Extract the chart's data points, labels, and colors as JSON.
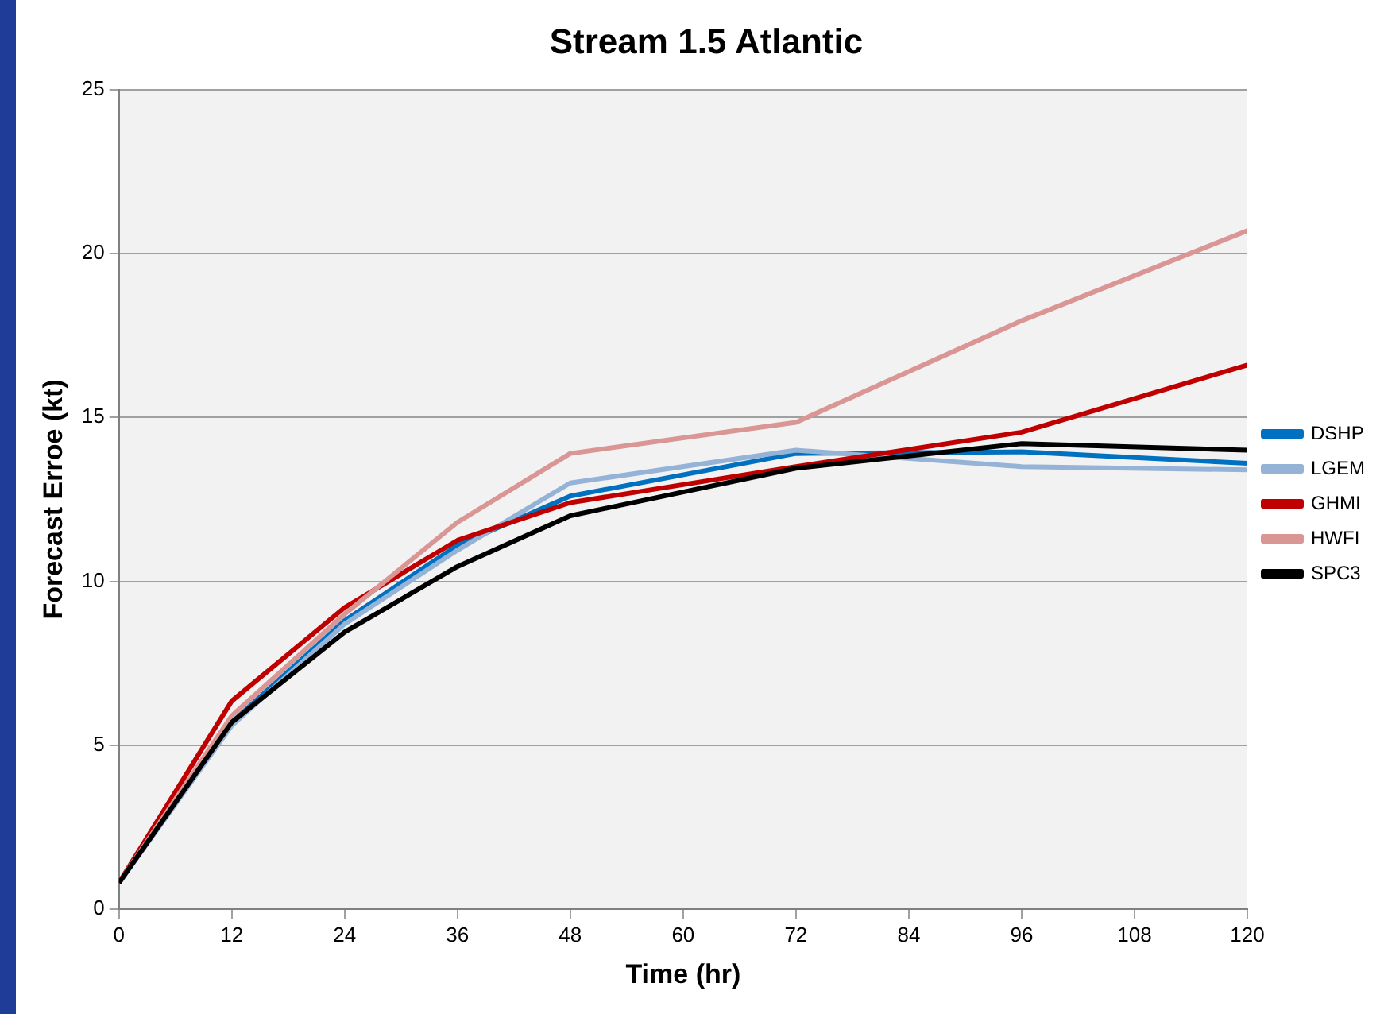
{
  "chart_data": {
    "type": "line",
    "title": "Stream 1.5 Atlantic",
    "xlabel": "Time (hr)",
    "ylabel": "Forecast Erroe (kt)",
    "x": [
      0,
      12,
      24,
      36,
      48,
      72,
      96,
      120
    ],
    "series": [
      {
        "name": "DSHP",
        "color": "#0070c0",
        "values": [
          0.8,
          5.7,
          8.8,
          11.1,
          12.6,
          13.9,
          13.95,
          13.6
        ]
      },
      {
        "name": "LGEM",
        "color": "#95b3d7",
        "values": [
          0.8,
          5.6,
          8.7,
          10.95,
          13.0,
          14.0,
          13.5,
          13.4
        ]
      },
      {
        "name": "GHMI",
        "color": "#c00000",
        "values": [
          0.8,
          6.35,
          9.2,
          11.25,
          12.4,
          13.5,
          14.55,
          16.6
        ]
      },
      {
        "name": "HWFI",
        "color": "#d99694",
        "values": [
          0.8,
          5.9,
          9.0,
          11.8,
          13.9,
          14.85,
          17.95,
          20.7
        ]
      },
      {
        "name": "SPC3",
        "color": "#000000",
        "values": [
          0.8,
          5.7,
          8.45,
          10.45,
          12.0,
          13.45,
          14.2,
          14.0
        ]
      }
    ],
    "xlim": [
      0,
      120
    ],
    "xticks": [
      0,
      12,
      24,
      36,
      48,
      60,
      72,
      84,
      96,
      108,
      120
    ],
    "ylim": [
      0,
      25
    ],
    "yticks": [
      0,
      5,
      10,
      15,
      20,
      25
    ],
    "grid": "y",
    "legend": "right",
    "marker": "none",
    "line_style": "solid"
  }
}
